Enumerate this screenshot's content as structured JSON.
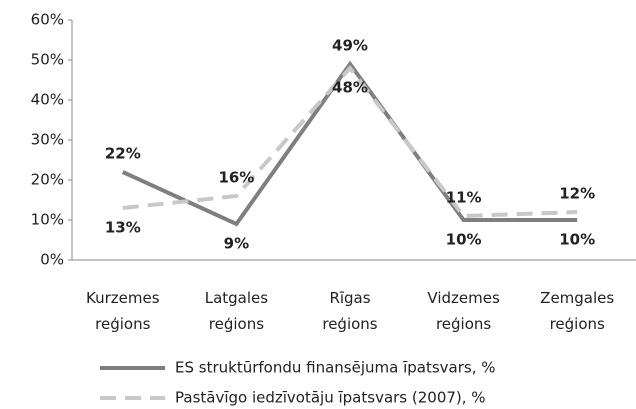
{
  "chart_data": {
    "type": "line",
    "categories": [
      "Kurzemes reģions",
      "Latgales reģions",
      "Rīgas reģions",
      "Vidzemes reģions",
      "Zemgales reģions"
    ],
    "series": [
      {
        "name": "ES struktūrfondu finansējuma īpatsvars, %",
        "color": "#7f7f7f",
        "dash": false,
        "values": [
          22,
          9,
          49,
          10,
          10
        ],
        "value_labels": [
          "22%",
          "9%",
          "49%",
          "10%",
          "10%"
        ]
      },
      {
        "name": "Pastāvīgo iedzīvotāju īpatsvars (2007), %",
        "color": "#c8c8c8",
        "dash": true,
        "values": [
          13,
          16,
          48,
          11,
          12
        ],
        "value_labels": [
          "13%",
          "16%",
          "48%",
          "11%",
          "12%"
        ]
      }
    ],
    "ylim": [
      0,
      60
    ],
    "yticks": [
      {
        "value": 0,
        "label": "0%"
      },
      {
        "value": 10,
        "label": "10%"
      },
      {
        "value": 20,
        "label": "20%"
      },
      {
        "value": 30,
        "label": "30%"
      },
      {
        "value": 40,
        "label": "40%"
      },
      {
        "value": 50,
        "label": "50%"
      },
      {
        "value": 60,
        "label": "60%"
      }
    ],
    "grid": false,
    "legend": "bottom"
  }
}
